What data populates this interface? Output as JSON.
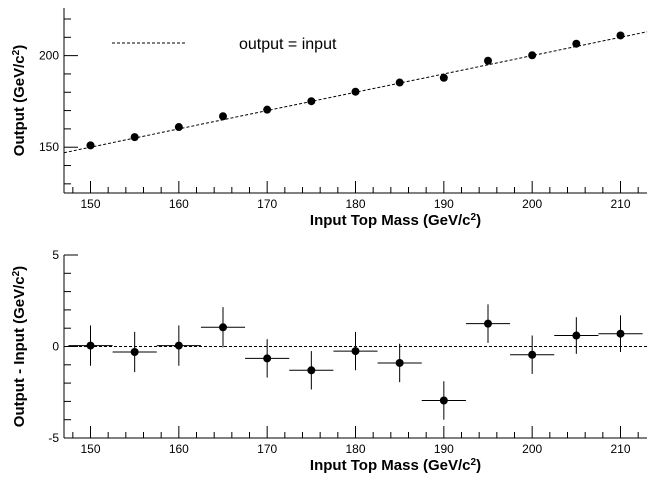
{
  "chart_data": [
    {
      "type": "scatter",
      "xlabel": "Input Top Mass (GeV/c²)",
      "ylabel": "Output (GeV/c²)",
      "xlim": [
        147,
        213
      ],
      "ylim": [
        125,
        226
      ],
      "xticks": [
        150,
        160,
        170,
        180,
        190,
        200,
        210
      ],
      "yticks": [
        150,
        200
      ],
      "legend": {
        "label": "output = input",
        "position": "top-left"
      },
      "reference_line": {
        "name": "output = input",
        "style": "dashed",
        "slope": 1,
        "intercept": 0
      },
      "x": [
        150,
        155,
        160,
        165,
        170,
        175,
        180,
        185,
        190,
        195,
        200,
        205,
        210
      ],
      "y": [
        151.0,
        155.5,
        161.0,
        166.9,
        170.5,
        175.1,
        180.3,
        185.3,
        187.9,
        197.2,
        200.2,
        206.5,
        211.0
      ]
    },
    {
      "type": "scatter",
      "xlabel": "Input Top Mass (GeV/c²)",
      "ylabel": "Output - Input (GeV/c²)",
      "xlim": [
        147,
        213
      ],
      "ylim": [
        -5,
        5
      ],
      "xticks": [
        150,
        160,
        170,
        180,
        190,
        200,
        210
      ],
      "yticks": [
        -5,
        0,
        5
      ],
      "reference_line": {
        "style": "dashed",
        "y": 0
      },
      "x": [
        150,
        155,
        160,
        165,
        170,
        175,
        180,
        185,
        190,
        195,
        200,
        205,
        210
      ],
      "x_err": 2.5,
      "y": [
        0.05,
        -0.3,
        0.05,
        1.05,
        -0.65,
        -1.3,
        -0.25,
        -0.9,
        -2.95,
        1.25,
        -0.45,
        0.6,
        0.7
      ],
      "y_err": [
        1.1,
        1.1,
        1.1,
        1.1,
        1.05,
        1.05,
        1.05,
        1.05,
        1.05,
        1.05,
        1.05,
        1.0,
        1.0
      ]
    }
  ]
}
